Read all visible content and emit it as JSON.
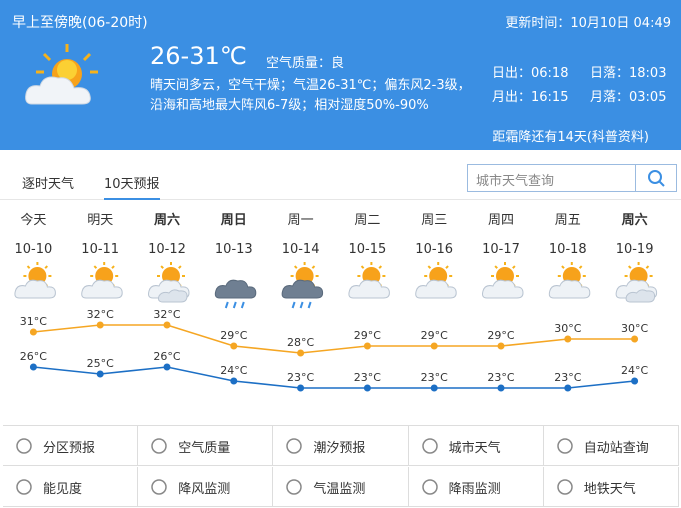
{
  "header": {
    "period": "早上至傍晚(06-20时)",
    "temperature": "26-31℃",
    "air_quality": "空气质量：良",
    "description": "晴天间多云，空气干燥；气温26-31℃；偏东风2-3级，沿海和高地最大阵风6-7级；相对湿度50%-90%",
    "update_time": "更新时间：10月10日 04:49",
    "sunrise": "日出：06:18",
    "sunset": "日落：18:03",
    "moonrise": "月出：16:15",
    "moonset": "月落：03:05",
    "solar_term": "距霜降还有14天(科普资料)"
  },
  "tabs": [
    "逐时天气",
    "10天预报"
  ],
  "search": {
    "placeholder": "城市天气查询"
  },
  "forecast": {
    "days": [
      {
        "weekday": "今天",
        "date": "10-10",
        "high": 31,
        "high_label": "31°C",
        "low": 26,
        "low_label": "26°C"
      },
      {
        "weekday": "明天",
        "date": "10-11",
        "high": 32,
        "high_label": "32°C",
        "low": 25,
        "low_label": "25°C"
      },
      {
        "weekday": "周六",
        "date": "10-12",
        "high": 32,
        "high_label": "32°C",
        "low": 26,
        "low_label": "26°C"
      },
      {
        "weekday": "周日",
        "date": "10-13",
        "high": 29,
        "high_label": "29°C",
        "low": 24,
        "low_label": "24°C"
      },
      {
        "weekday": "周一",
        "date": "10-14",
        "high": 28,
        "high_label": "28°C",
        "low": 23,
        "low_label": "23°C"
      },
      {
        "weekday": "周二",
        "date": "10-15",
        "high": 29,
        "high_label": "29°C",
        "low": 23,
        "low_label": "23°C"
      },
      {
        "weekday": "周三",
        "date": "10-16",
        "high": 29,
        "high_label": "29°C",
        "low": 23,
        "low_label": "23°C"
      },
      {
        "weekday": "周四",
        "date": "10-17",
        "high": 29,
        "high_label": "29°C",
        "low": 23,
        "low_label": "23°C"
      },
      {
        "weekday": "周五",
        "date": "10-18",
        "high": 30,
        "high_label": "30°C",
        "low": 23,
        "low_label": "23°C"
      },
      {
        "weekday": "周六",
        "date": "10-19",
        "high": 30,
        "high_label": "30°C",
        "low": 24,
        "low_label": "24°C"
      }
    ]
  },
  "links": [
    [
      "分区预报",
      "空气质量",
      "潮汐预报",
      "城市天气",
      "自动站查询"
    ],
    [
      "能见度",
      "降风监测",
      "气温监测",
      "降雨监测",
      "地铁天气"
    ]
  ]
}
